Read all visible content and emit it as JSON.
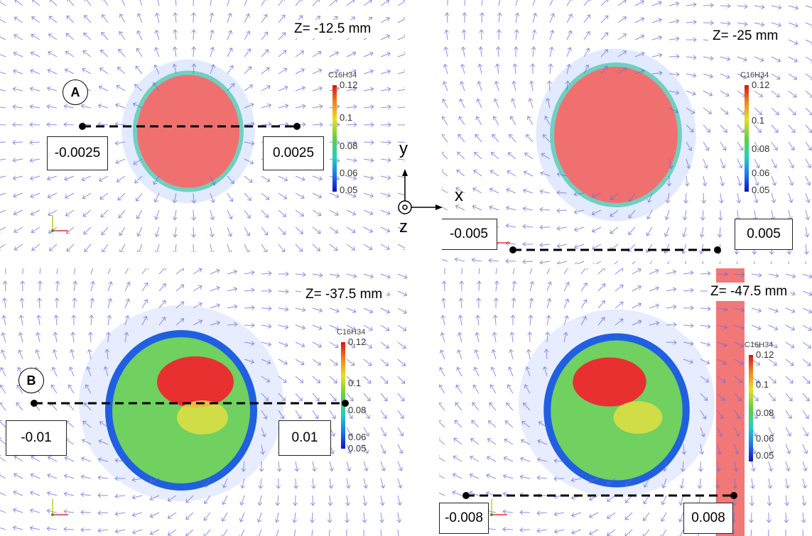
{
  "panels": [
    {
      "z_label": "Z= -12.5 mm",
      "colorbar": {
        "title": "C16H34",
        "ticks": [
          "0.12",
          "0.1",
          "0.08",
          "0.06",
          "0.05"
        ]
      },
      "marker": "A",
      "range_left": "-0.0025",
      "range_right": "0.0025"
    },
    {
      "z_label": "Z= -25 mm",
      "colorbar": {
        "title": "C16H34",
        "ticks": [
          "0.12",
          "0.1",
          "0.08",
          "0.06",
          "0.05"
        ]
      },
      "range_left": "-0.005",
      "range_right": "0.005"
    },
    {
      "z_label": "Z= -37.5 mm",
      "colorbar": {
        "title": "C16H34",
        "ticks": [
          "0.12",
          "0.1",
          "0.08",
          "0.06",
          "0.05"
        ]
      },
      "marker": "B",
      "range_left": "-0.01",
      "range_right": "0.01"
    },
    {
      "z_label": "Z= -47.5 mm",
      "colorbar": {
        "title": "C16H34",
        "ticks": [
          "0.12",
          "0.1",
          "0.08",
          "0.06",
          "0.05"
        ]
      },
      "range_left": "-0.008",
      "range_right": "0.008"
    }
  ],
  "axes": {
    "y": "y",
    "x": "x",
    "z": "z"
  },
  "colors": {
    "arrows": "#6a6ad8",
    "high": "#e02020",
    "line": "#000000"
  }
}
